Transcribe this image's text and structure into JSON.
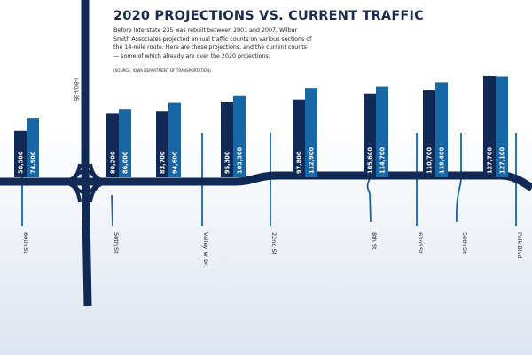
{
  "header": {
    "title": "2020 PROJECTIONS VS. CURRENT TRAFFIC",
    "intro": "Before Interstate 235 was rebuilt between 2001 and 2007, Wilbur Smith Associates projected annual traffic counts on various sections of the 14-mile route. Here are those projections, and the current counts — some of which already are over the 2020 projections.",
    "source": "(SOURCE: IOWA DEPARTMENT OF TRANSPORTATION)"
  },
  "map": {
    "highway_label": "I-80/I-35"
  },
  "colors": {
    "projection": "#102a55",
    "current": "#1766a6",
    "road": "#102a55",
    "street": "#1766a6",
    "background_top": "#ffffff",
    "background_bottom": "#dde5f0"
  },
  "chart_data": {
    "type": "bar",
    "title": "2020 PROJECTIONS VS. CURRENT TRAFFIC",
    "ylim": [
      0,
      140000
    ],
    "categories": [
      "60th St",
      "50th St",
      "Valley W Dr.",
      "22nd St",
      "8th St",
      "63rd St",
      "56th St",
      "Polk Blvd"
    ],
    "series": [
      {
        "key": "projection",
        "value_labels": [
          "58,500",
          "80,200",
          "83,700",
          "95,300",
          "97,800",
          "105,600",
          "110,700",
          "127,700"
        ],
        "values": [
          58500,
          80200,
          83700,
          95300,
          97800,
          105600,
          110700,
          127700
        ]
      },
      {
        "key": "current",
        "value_labels": [
          "74,900",
          "86,000",
          "94,600",
          "103,300",
          "112,900",
          "114,700",
          "119,400",
          "127,100"
        ],
        "values": [
          74900,
          86000,
          94600,
          103300,
          112900,
          114700,
          119400,
          127100
        ]
      }
    ]
  }
}
